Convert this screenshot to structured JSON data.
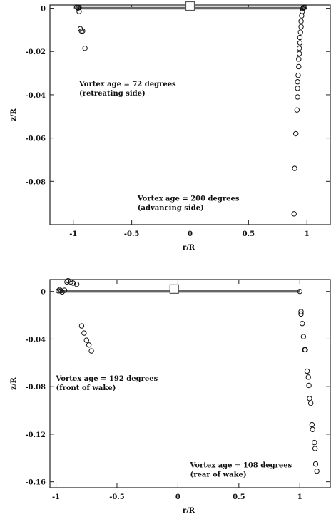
{
  "chart_data": [
    {
      "type": "scatter",
      "xlabel": "r/R",
      "ylabel": "z/R",
      "xlim": [
        -1.2,
        1.2
      ],
      "ylim": [
        -0.1,
        0.0015
      ],
      "x_ticks": [
        -1,
        -0.5,
        0,
        0.5,
        1
      ],
      "x_tick_labels": [
        "-1",
        "-0.5",
        "0",
        "0.5",
        "1"
      ],
      "y_ticks": [
        0,
        -0.02,
        -0.04,
        -0.06,
        -0.08
      ],
      "y_tick_labels": [
        "0",
        "-0.02",
        "-0.04",
        "-0.06",
        "-0.08"
      ],
      "grid": false,
      "blade_line": {
        "x": [
          -0.97,
          1.0
        ],
        "y": [
          0,
          0
        ]
      },
      "rotor_hub": {
        "x": 0,
        "y": 0.001
      },
      "series": [
        {
          "marker": "circle",
          "points": [
            [
              -0.97,
              0.0005
            ],
            [
              -0.96,
              0.0005
            ],
            [
              -0.95,
              0.0003
            ],
            [
              -0.96,
              0.0001
            ],
            [
              -0.95,
              -0.0015
            ],
            [
              -0.94,
              -0.0095
            ],
            [
              -0.93,
              -0.0105
            ],
            [
              -0.92,
              -0.0105
            ],
            [
              -0.9,
              -0.0185
            ]
          ]
        },
        {
          "marker": "circle",
          "points": [
            [
              0.98,
              0.0005
            ],
            [
              0.97,
              0.0003
            ],
            [
              0.97,
              0.0001
            ],
            [
              0.965,
              -0.0003
            ],
            [
              0.96,
              -0.0015
            ],
            [
              0.955,
              -0.0035
            ],
            [
              0.95,
              -0.006
            ],
            [
              0.95,
              -0.0085
            ],
            [
              0.945,
              -0.011
            ],
            [
              0.94,
              -0.0135
            ],
            [
              0.94,
              -0.016
            ],
            [
              0.935,
              -0.0185
            ],
            [
              0.935,
              -0.021
            ],
            [
              0.93,
              -0.0235
            ],
            [
              0.93,
              -0.027
            ],
            [
              0.925,
              -0.031
            ],
            [
              0.92,
              -0.034
            ],
            [
              0.92,
              -0.037
            ],
            [
              0.92,
              -0.041
            ],
            [
              0.915,
              -0.047
            ],
            [
              0.905,
              -0.058
            ],
            [
              0.895,
              -0.074
            ],
            [
              0.89,
              -0.095
            ]
          ]
        }
      ],
      "annotations": [
        {
          "lines": [
            "Vortex age = 72 degrees",
            "(retreating side)"
          ],
          "x": -0.95,
          "y": -0.036
        },
        {
          "lines": [
            "Vortex age = 200 degrees",
            "(advancing side)"
          ],
          "x": -0.45,
          "y": -0.089
        }
      ]
    },
    {
      "type": "scatter",
      "xlabel": "r/R",
      "ylabel": "z/R",
      "xlim": [
        -1.05,
        1.25
      ],
      "ylim": [
        -0.165,
        0.01
      ],
      "x_ticks": [
        -1,
        -0.5,
        0,
        0.5,
        1
      ],
      "x_tick_labels": [
        "-1",
        "-0.5",
        "0",
        "0.5",
        "1"
      ],
      "y_ticks": [
        0,
        -0.04,
        -0.08,
        -0.12,
        -0.16
      ],
      "y_tick_labels": [
        "0",
        "-0.04",
        "-0.08",
        "-0.12",
        "-0.16"
      ],
      "grid": false,
      "blade_line": {
        "x": [
          -0.97,
          1.0
        ],
        "y": [
          0,
          0
        ]
      },
      "rotor_hub": {
        "x": -0.03,
        "y": 0.002
      },
      "series": [
        {
          "marker": "circle",
          "points": [
            [
              -0.98,
              0.0005
            ],
            [
              -0.97,
              0.0015
            ],
            [
              -0.96,
              0.0005
            ],
            [
              -0.95,
              -0.0005
            ],
            [
              -0.93,
              0.001
            ],
            [
              -0.91,
              0.008
            ],
            [
              -0.9,
              0.009
            ],
            [
              -0.88,
              0.008
            ],
            [
              -0.86,
              0.007
            ],
            [
              -0.83,
              0.006
            ],
            [
              -0.79,
              -0.029
            ],
            [
              -0.77,
              -0.035
            ],
            [
              -0.75,
              -0.041
            ],
            [
              -0.73,
              -0.045
            ],
            [
              -0.71,
              -0.05
            ]
          ]
        },
        {
          "marker": "circle",
          "points": [
            [
              1.0,
              0.0
            ],
            [
              1.01,
              -0.017
            ],
            [
              1.01,
              -0.019
            ],
            [
              1.02,
              -0.027
            ],
            [
              1.03,
              -0.038
            ],
            [
              1.04,
              -0.049
            ],
            [
              1.045,
              -0.049
            ],
            [
              1.06,
              -0.067
            ],
            [
              1.07,
              -0.072
            ],
            [
              1.075,
              -0.079
            ],
            [
              1.08,
              -0.09
            ],
            [
              1.09,
              -0.094
            ],
            [
              1.1,
              -0.112
            ],
            [
              1.105,
              -0.116
            ],
            [
              1.12,
              -0.127
            ],
            [
              1.125,
              -0.132
            ],
            [
              1.13,
              -0.145
            ],
            [
              1.14,
              -0.151
            ]
          ]
        }
      ],
      "annotations": [
        {
          "lines": [
            "Vortex age = 192 degrees",
            "(front of wake)"
          ],
          "x": -1.0,
          "y": -0.075
        },
        {
          "lines": [
            "Vortex age = 108 degrees",
            "(rear of wake)"
          ],
          "x": 0.1,
          "y": -0.148
        }
      ]
    }
  ]
}
